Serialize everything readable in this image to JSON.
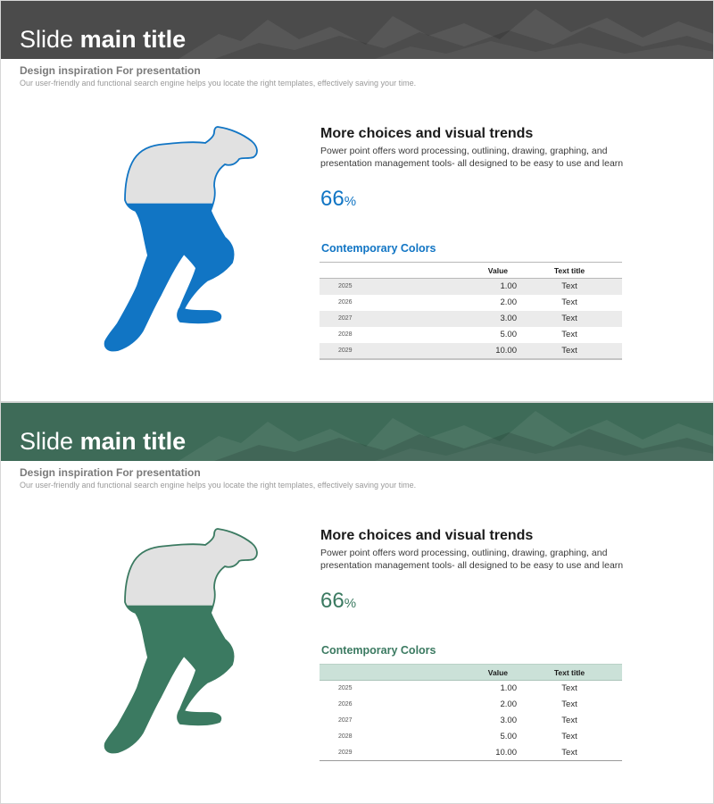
{
  "slides": [
    {
      "title_regular": "Slide",
      "title_bold": "main title",
      "subtitle": "Design inspiration For presentation",
      "description": "Our user-friendly and functional search engine helps you locate the right templates, effectively saving your time.",
      "heading": "More choices and visual trends",
      "body": "Power point offers word processing, outlining, drawing, graphing, and presentation management tools- all designed to be easy to use and learn",
      "percent_value": "66",
      "percent_sign": "%",
      "progress": 0.66,
      "accent_color": "#1175c4",
      "banner_color": "#4b4b4b",
      "table": {
        "title": "Contemporary Colors",
        "headers": [
          "",
          "Value",
          "Text title"
        ],
        "rows": [
          [
            "2025",
            "1.00",
            "Text"
          ],
          [
            "2026",
            "2.00",
            "Text"
          ],
          [
            "2027",
            "3.00",
            "Text"
          ],
          [
            "2028",
            "5.00",
            "Text"
          ],
          [
            "2029",
            "10.00",
            "Text"
          ]
        ]
      }
    },
    {
      "title_regular": "Slide",
      "title_bold": "main title",
      "subtitle": "Design inspiration For presentation",
      "description": "Our user-friendly and functional search engine helps you locate the right templates, effectively saving your time.",
      "heading": "More choices and visual trends",
      "body": "Power point offers word processing, outlining, drawing, graphing, and presentation management tools- all designed to be easy to use and learn",
      "percent_value": "66",
      "percent_sign": "%",
      "progress": 0.66,
      "accent_color": "#3b7a61",
      "banner_color": "#3e6b58",
      "table": {
        "title": "Contemporary Colors",
        "headers": [
          "",
          "Value",
          "Text title"
        ],
        "rows": [
          [
            "2025",
            "1.00",
            "Text"
          ],
          [
            "2026",
            "2.00",
            "Text"
          ],
          [
            "2027",
            "3.00",
            "Text"
          ],
          [
            "2028",
            "5.00",
            "Text"
          ],
          [
            "2029",
            "10.00",
            "Text"
          ]
        ]
      }
    }
  ],
  "icons": {
    "hiker": "hiker-silhouette-icon",
    "banner_background": "mountain-range-image"
  }
}
